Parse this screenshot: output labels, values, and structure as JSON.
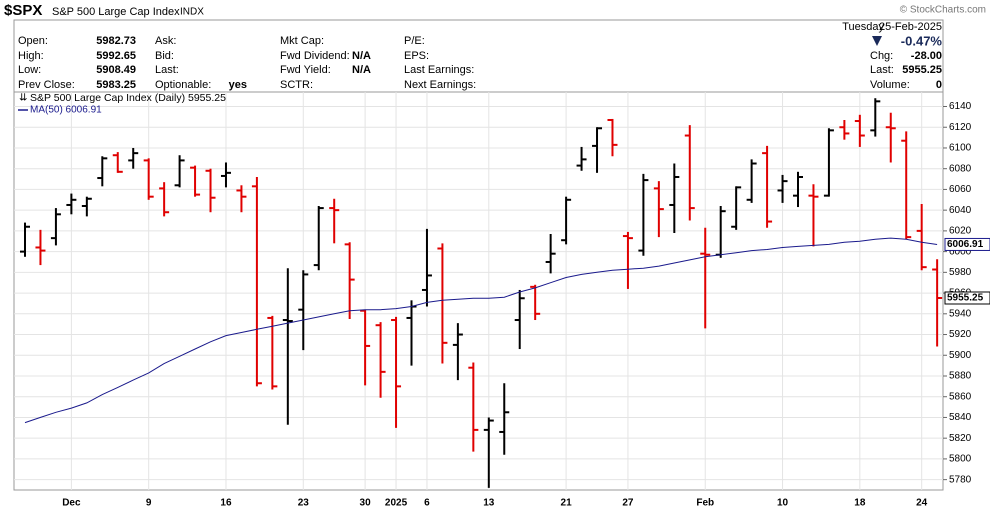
{
  "header": {
    "symbol": "$SPX",
    "name": "S&P 500 Large Cap Index",
    "exchange": "INDX",
    "watermark": "© StockCharts.com",
    "day": "Tuesday",
    "date": "25-Feb-2025",
    "change_pct": "-0.47%",
    "columns": [
      [
        {
          "label": "Open:",
          "value": "5982.73"
        },
        {
          "label": "High:",
          "value": "5992.65"
        },
        {
          "label": "Low:",
          "value": "5908.49"
        },
        {
          "label": "Prev Close:",
          "value": "5983.25"
        }
      ],
      [
        {
          "label": "Ask:"
        },
        {
          "label": "Bid:"
        },
        {
          "label": "Last:"
        },
        {
          "label": "Optionable:",
          "value": "yes"
        }
      ],
      [
        {
          "label": "Mkt Cap:"
        },
        {
          "label": "Fwd Dividend:",
          "value": "N/A"
        },
        {
          "label": "Fwd Yield:",
          "value": "N/A"
        },
        {
          "label": "SCTR:"
        }
      ],
      [
        {
          "label": "P/E:"
        },
        {
          "label": "EPS:"
        },
        {
          "label": "Last Earnings:"
        },
        {
          "label": "Next Earnings:"
        }
      ]
    ],
    "right": [
      {
        "label": "Chg:",
        "value": "-28.00"
      },
      {
        "label": "Last:",
        "value": "5955.25"
      },
      {
        "label": "Volume:",
        "value": "0"
      }
    ]
  },
  "chart_data": {
    "type": "ohlc",
    "categories": [
      null,
      null,
      null,
      "Dec",
      null,
      null,
      null,
      null,
      "9",
      null,
      null,
      null,
      null,
      "16",
      null,
      null,
      null,
      null,
      "23",
      null,
      null,
      null,
      "30",
      null,
      "2025",
      null,
      "6",
      null,
      null,
      null,
      "13",
      null,
      null,
      null,
      null,
      "21",
      null,
      null,
      null,
      "27",
      null,
      null,
      null,
      null,
      "Feb",
      null,
      null,
      null,
      null,
      "10",
      null,
      null,
      null,
      null,
      "18",
      null,
      null,
      null,
      "24",
      null
    ],
    "ylim": [
      5770,
      6154
    ],
    "yticks": [
      5780,
      5800,
      5820,
      5840,
      5860,
      5880,
      5900,
      5920,
      5940,
      5960,
      5980,
      6000,
      6020,
      6040,
      6060,
      6080,
      6100,
      6120,
      6140
    ],
    "grid": true,
    "series": [
      {
        "name": "S&P 500 Large Cap Index (Daily) 5955.25",
        "tag": "5955.25",
        "up_color": "#000000",
        "down_color": "#e00000",
        "colors": [
          "up",
          "down",
          "up",
          "up",
          "up",
          "up",
          "down",
          "up",
          "down",
          "down",
          "up",
          "down",
          "down",
          "up",
          "down",
          "down",
          "down",
          "up",
          "up",
          "up",
          "down",
          "down",
          "down",
          "down",
          "down",
          "up",
          "up",
          "down",
          "up",
          "down",
          "up",
          "up",
          "up",
          "down",
          "up",
          "up",
          "up",
          "up",
          "down",
          "down",
          "up",
          "down",
          "up",
          "down",
          "down",
          "up",
          "up",
          "up",
          "down",
          "up",
          "up",
          "down",
          "up",
          "down",
          "down",
          "up",
          "down",
          "down",
          "down",
          "down"
        ],
        "open": [
          6000,
          6004,
          6013,
          6045,
          6044,
          6071,
          6093,
          6088,
          6088,
          6061,
          6064,
          6081,
          6078,
          6073,
          6059,
          6063,
          5936,
          5934,
          5944,
          5987,
          6042,
          6007,
          5943,
          5929,
          5934,
          5936,
          5963,
          6003,
          5910,
          5888,
          5828,
          5826,
          5934,
          5966,
          5990,
          6011,
          6083,
          6102,
          6127,
          6015,
          6001,
          6061,
          6045,
          6112,
          5998,
          5997,
          6024,
          6050,
          6095,
          6059,
          6054,
          6054,
          6054,
          6120,
          6126,
          6117,
          6120,
          6107,
          6020,
          5982.73
        ],
        "high": [
          6028,
          6021,
          6042,
          6056,
          6053,
          6092,
          6096,
          6100,
          6090,
          6067,
          6093,
          6083,
          6080,
          6086,
          6064,
          6072,
          5938,
          5984,
          5982,
          6044,
          6051,
          6009,
          5944,
          5932,
          5937,
          5953,
          6022,
          6008,
          5931,
          5893,
          5840,
          5873,
          5963,
          5968,
          6017,
          6053,
          6101,
          6120,
          6128,
          6019,
          6075,
          6068,
          6085,
          6122,
          6023,
          6044,
          6063,
          6089,
          6102,
          6074,
          6077,
          6065,
          6119,
          6127,
          6132,
          6148,
          6134,
          6116,
          6046,
          5992.65
        ],
        "low": [
          5995,
          5987,
          6006,
          6036,
          6034,
          6063,
          6076,
          6080,
          6050,
          6034,
          6062,
          6053,
          6038,
          6062,
          6038,
          5870,
          5867,
          5833,
          5905,
          5982,
          6008,
          5935,
          5871,
          5859,
          5830,
          5890,
          5947,
          5892,
          5876,
          5807,
          5772,
          5804,
          5906,
          5934,
          5979,
          6007,
          6078,
          6076,
          6092,
          5964,
          5996,
          6014,
          6018,
          6030,
          5926,
          5994,
          6021,
          6047,
          6023,
          6047,
          6043,
          6005,
          6053,
          6108,
          6101,
          6111,
          6086,
          6012,
          5982,
          5908.49
        ],
        "close": [
          6024,
          6001,
          6036,
          6050,
          6051,
          6090,
          6077,
          6095,
          6053,
          6038,
          6088,
          6055,
          6052,
          6076,
          6053,
          5873,
          5870,
          5933,
          5978,
          6042,
          6040,
          5973,
          5909,
          5884,
          5870,
          5947,
          5977,
          5912,
          5920,
          5828,
          5837,
          5845,
          5955,
          5940,
          5998,
          6050,
          6089,
          6119,
          6103,
          6013,
          6069,
          6041,
          6072,
          6042,
          5997,
          6039,
          6062,
          6085,
          6029,
          6068,
          6072,
          6053,
          6117,
          6114,
          6112,
          6145,
          6119,
          6014,
          5985,
          5955.25
        ]
      },
      {
        "name": "MA(50) 6006.91",
        "tag": "6006.91",
        "color": "#1a1a8c",
        "values": [
          5835,
          5840,
          5845,
          5849,
          5854,
          5862,
          5869,
          5876,
          5883,
          5892,
          5899,
          5906,
          5913,
          5919,
          5922,
          5925,
          5928,
          5931,
          5934,
          5937,
          5940,
          5943,
          5944,
          5944,
          5945,
          5947,
          5951,
          5953,
          5954,
          5955,
          5955,
          5956,
          5961,
          5965,
          5970,
          5975,
          5978,
          5980,
          5982,
          5983,
          5984,
          5986,
          5989,
          5992,
          5995,
          5997,
          5999,
          6001,
          6002,
          6004,
          6005,
          6006,
          6007,
          6009,
          6010,
          6012,
          6013,
          6012,
          6009,
          6006.91
        ]
      }
    ]
  }
}
